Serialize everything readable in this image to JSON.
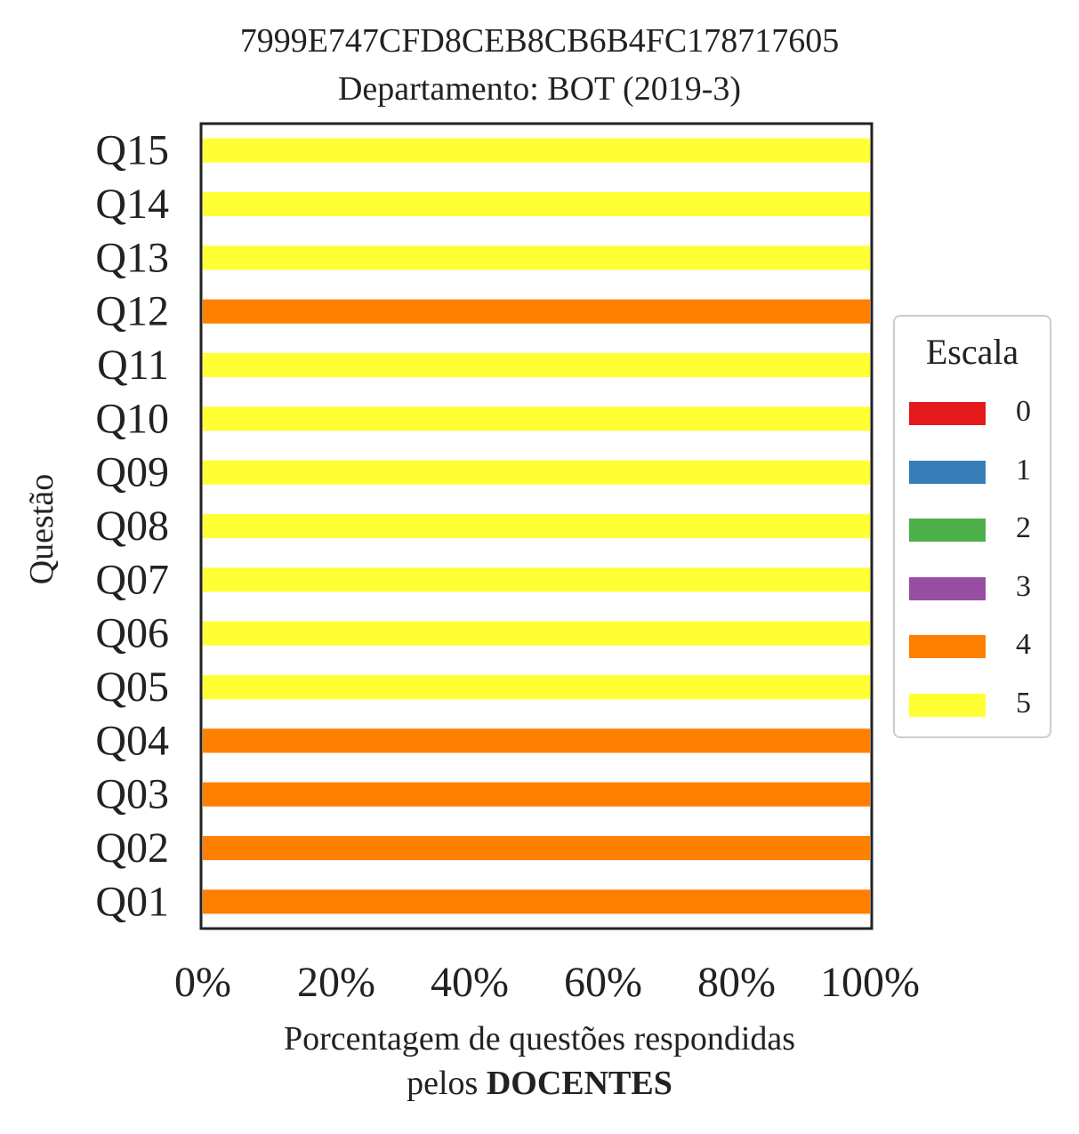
{
  "chart_data": {
    "type": "bar",
    "orientation": "horizontal",
    "stacked": true,
    "title_lines": [
      "7999E747CFD8CEB8CB6B4FC178717605",
      "Departamento: BOT (2019-3)"
    ],
    "ylabel": "Questão",
    "xlabel_line1": "Porcentagem de questões respondidas",
    "xlabel_line2_prefix": "pelos ",
    "xlabel_line2_bold": "DOCENTES",
    "xlim": [
      0,
      100
    ],
    "xticks": [
      0,
      20,
      40,
      60,
      80,
      100
    ],
    "xtick_labels": [
      "0%",
      "20%",
      "40%",
      "60%",
      "80%",
      "100%"
    ],
    "categories": [
      "Q01",
      "Q02",
      "Q03",
      "Q04",
      "Q05",
      "Q06",
      "Q07",
      "Q08",
      "Q09",
      "Q10",
      "Q11",
      "Q12",
      "Q13",
      "Q14",
      "Q15"
    ],
    "series": [
      {
        "name": "0",
        "color": "#e41a1c",
        "values": [
          0,
          0,
          0,
          0,
          0,
          0,
          0,
          0,
          0,
          0,
          0,
          0,
          0,
          0,
          0
        ]
      },
      {
        "name": "1",
        "color": "#377eb8",
        "values": [
          0,
          0,
          0,
          0,
          0,
          0,
          0,
          0,
          0,
          0,
          0,
          0,
          0,
          0,
          0
        ]
      },
      {
        "name": "2",
        "color": "#4daf4a",
        "values": [
          0,
          0,
          0,
          0,
          0,
          0,
          0,
          0,
          0,
          0,
          0,
          0,
          0,
          0,
          0
        ]
      },
      {
        "name": "3",
        "color": "#984ea3",
        "values": [
          0,
          0,
          0,
          0,
          0,
          0,
          0,
          0,
          0,
          0,
          0,
          0,
          0,
          0,
          0
        ]
      },
      {
        "name": "4",
        "color": "#ff7f00",
        "values": [
          100,
          100,
          100,
          100,
          0,
          0,
          0,
          0,
          0,
          0,
          0,
          100,
          0,
          0,
          0
        ]
      },
      {
        "name": "5",
        "color": "#ffff33",
        "values": [
          0,
          0,
          0,
          0,
          100,
          100,
          100,
          100,
          100,
          100,
          100,
          0,
          100,
          100,
          100
        ]
      }
    ],
    "legend": {
      "title": "Escala",
      "placement": "center-right, outside plot"
    },
    "grid": false
  }
}
